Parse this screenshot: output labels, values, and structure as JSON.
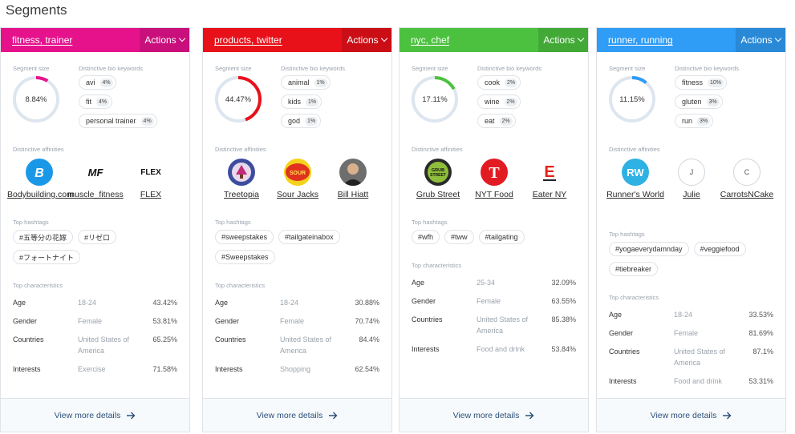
{
  "page_title": "Segments",
  "actions_label": "Actions",
  "footer_label": "View more details",
  "labels": {
    "segment_size": "Segment size",
    "keywords": "Distinctive bio keywords",
    "affinities": "Distinctive affinities",
    "hashtags": "Top hashtags",
    "characteristics": "Top characteristics"
  },
  "segments": [
    {
      "name": "products, twitter",
      "color": "#e8111a",
      "size_pct": 44.47,
      "size_text": "44.47%",
      "keywords": [
        {
          "word": "animal",
          "pct": "1%"
        },
        {
          "word": "kids",
          "pct": "1%"
        },
        {
          "word": "god",
          "pct": "1%"
        }
      ],
      "affinities": [
        {
          "name": "Treetopia",
          "icon": "treetopia-logo"
        },
        {
          "name": "Sour Jacks",
          "icon": "sour-jacks-logo"
        },
        {
          "name": "Bill Hiatt",
          "icon": "bill-hiatt-avatar"
        }
      ],
      "hashtags": [
        "#sweepstakes",
        "#tailgateinabox",
        "#Sweepstakes"
      ],
      "characteristics": [
        {
          "key": "Age",
          "value": "18-24",
          "pct": "30.88%"
        },
        {
          "key": "Gender",
          "value": "Female",
          "pct": "70.74%"
        },
        {
          "key": "Countries",
          "value": "United States of America",
          "pct": "84.4%"
        },
        {
          "key": "Interests",
          "value": "Shopping",
          "pct": "62.54%"
        }
      ]
    },
    {
      "name": "nyc, chef",
      "color": "#4cc13f",
      "size_pct": 17.11,
      "size_text": "17.11%",
      "keywords": [
        {
          "word": "cook",
          "pct": "2%"
        },
        {
          "word": "wine",
          "pct": "2%"
        },
        {
          "word": "eat",
          "pct": "2%"
        }
      ],
      "affinities": [
        {
          "name": "Grub Street",
          "icon": "grub-street-logo"
        },
        {
          "name": "NYT Food",
          "icon": "nyt-logo"
        },
        {
          "name": "Eater NY",
          "icon": "eater-logo"
        }
      ],
      "hashtags": [
        "#wfh",
        "#tww",
        "#tailgating"
      ],
      "characteristics": [
        {
          "key": "Age",
          "value": "25-34",
          "pct": "32.09%"
        },
        {
          "key": "Gender",
          "value": "Female",
          "pct": "63.55%"
        },
        {
          "key": "Countries",
          "value": "United States of America",
          "pct": "85.38%"
        },
        {
          "key": "Interests",
          "value": "Food and drink",
          "pct": "53.84%"
        }
      ]
    },
    {
      "name": "runner, running",
      "color": "#2f9cf5",
      "size_pct": 11.15,
      "size_text": "11.15%",
      "keywords": [
        {
          "word": "fitness",
          "pct": "10%"
        },
        {
          "word": "gluten",
          "pct": "3%"
        },
        {
          "word": "run",
          "pct": "3%"
        }
      ],
      "affinities": [
        {
          "name": "Runner's World",
          "icon": "runners-world-logo"
        },
        {
          "name": "Julie",
          "icon": "J"
        },
        {
          "name": "CarrotsNCake",
          "icon": "C"
        }
      ],
      "hashtags": [
        "#yogaeverydamnday",
        "#veggiefood",
        "#tiebreaker"
      ],
      "characteristics": [
        {
          "key": "Age",
          "value": "18-24",
          "pct": "33.53%"
        },
        {
          "key": "Gender",
          "value": "Female",
          "pct": "81.69%"
        },
        {
          "key": "Countries",
          "value": "United States of America",
          "pct": "87.1%"
        },
        {
          "key": "Interests",
          "value": "Food and drink",
          "pct": "53.31%"
        }
      ]
    },
    {
      "name": "fitness, trainer",
      "color": "#e5128c",
      "size_pct": 8.84,
      "size_text": "8.84%",
      "keywords": [
        {
          "word": "avi",
          "pct": "4%"
        },
        {
          "word": "fit",
          "pct": "4%"
        },
        {
          "word": "personal trainer",
          "pct": "4%"
        }
      ],
      "affinities": [
        {
          "name": "Bodybuilding.com",
          "icon": "bodybuilding-logo"
        },
        {
          "name": "muscle_fitness",
          "icon": "muscle-fitness-logo"
        },
        {
          "name": "FLEX",
          "icon": "FLEX"
        }
      ],
      "hashtags": [
        "#五等分の花嫁",
        "#リゼロ",
        "#フォートナイト"
      ],
      "characteristics": [
        {
          "key": "Age",
          "value": "18-24",
          "pct": "43.42%"
        },
        {
          "key": "Gender",
          "value": "Female",
          "pct": "53.81%"
        },
        {
          "key": "Countries",
          "value": "United States of America",
          "pct": "65.25%"
        },
        {
          "key": "Interests",
          "value": "Exercise",
          "pct": "71.58%"
        }
      ]
    }
  ]
}
